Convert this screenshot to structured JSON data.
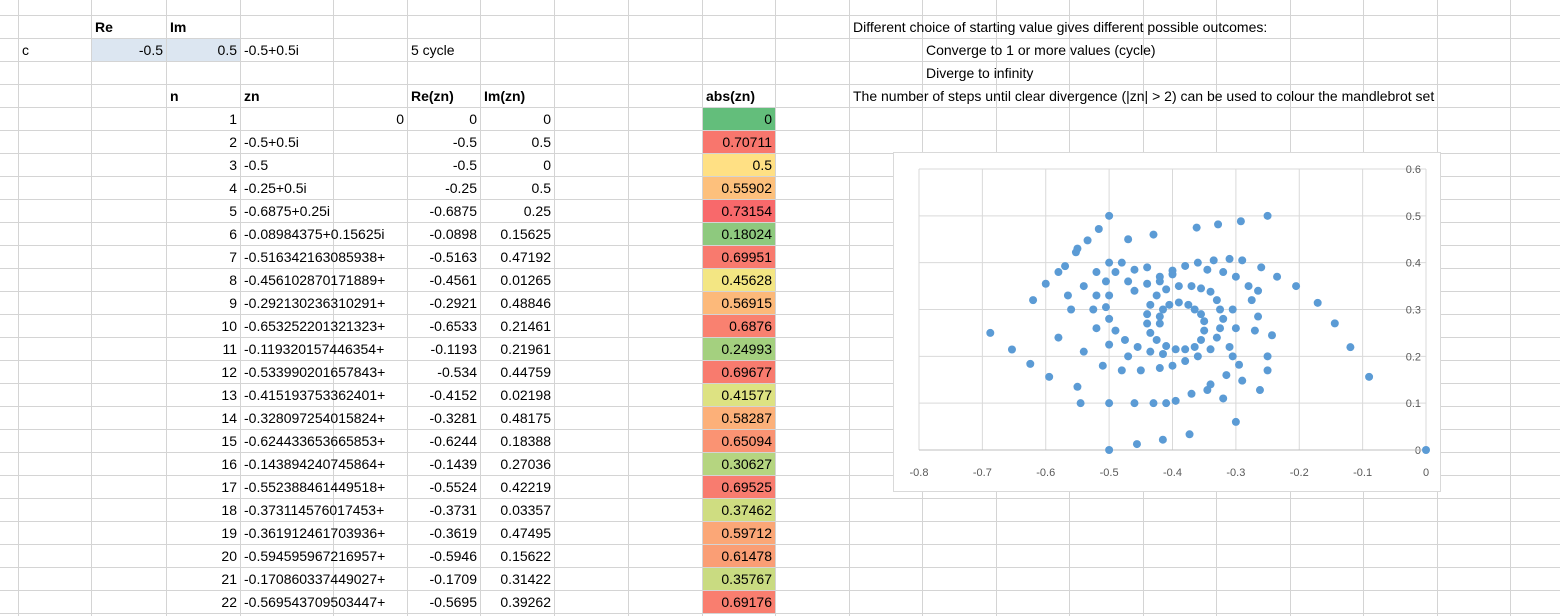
{
  "sheet": {
    "cells": {
      "B1": "Re",
      "C1": "Im",
      "A2": "c",
      "B2": "-0.5",
      "C2": "0.5",
      "D2": "-0.5+0.5i",
      "F2": "5 cycle",
      "C4": "n",
      "D4": "zn",
      "F4": "Re(zn)",
      "G4": "Im(zn)",
      "J4": "abs(zn)",
      "L1": "Different choice of starting value gives different possible outcomes:",
      "M2": "Converge to 1 or more values (cycle)",
      "M3": "Diverge to infinity",
      "L4": "The number of steps until clear divergence (|zn| > 2) can be used to colour the mandlebrot set"
    },
    "rows": [
      {
        "n": "1",
        "zn": "0",
        "re": "0",
        "im": "0",
        "abs": "0",
        "color": "#63be7b"
      },
      {
        "n": "2",
        "zn": "-0.5+0.5i",
        "re": "-0.5",
        "im": "0.5",
        "abs": "0.70711",
        "color": "#f8766d"
      },
      {
        "n": "3",
        "zn": "-0.5",
        "re": "-0.5",
        "im": "0",
        "abs": "0.5",
        "color": "#ffe084"
      },
      {
        "n": "4",
        "zn": "-0.25+0.5i",
        "re": "-0.25",
        "im": "0.5",
        "abs": "0.55902",
        "color": "#fdc07c"
      },
      {
        "n": "5",
        "zn": "-0.6875+0.25i",
        "re": "-0.6875",
        "im": "0.25",
        "abs": "0.73154",
        "color": "#f8696b"
      },
      {
        "n": "6",
        "zn": "-0.08984375+0.15625i",
        "re": "-0.0898",
        "im": "0.15625",
        "abs": "0.18024",
        "color": "#8ec97e"
      },
      {
        "n": "7",
        "zn": "-0.516342163085938+",
        "re": "-0.5163",
        "im": "0.47192",
        "abs": "0.69951",
        "color": "#f87a6e"
      },
      {
        "n": "8",
        "zn": "-0.456102870171889+",
        "re": "-0.4561",
        "im": "0.01265",
        "abs": "0.45628",
        "color": "#f3e683"
      },
      {
        "n": "9",
        "zn": "-0.292130236310291+",
        "re": "-0.2921",
        "im": "0.48846",
        "abs": "0.56915",
        "color": "#fcb97a"
      },
      {
        "n": "10",
        "zn": "-0.653252201321323+",
        "re": "-0.6533",
        "im": "0.21461",
        "abs": "0.6876",
        "color": "#f98170"
      },
      {
        "n": "11",
        "zn": "-0.119320157446354+",
        "re": "-0.1193",
        "im": "0.21961",
        "abs": "0.24993",
        "color": "#a4d07f"
      },
      {
        "n": "12",
        "zn": "-0.533990201657843+",
        "re": "-0.534",
        "im": "0.44759",
        "abs": "0.69677",
        "color": "#f87b6e"
      },
      {
        "n": "13",
        "zn": "-0.415193753362401+",
        "re": "-0.4152",
        "im": "0.02198",
        "abs": "0.41577",
        "color": "#dde282"
      },
      {
        "n": "14",
        "zn": "-0.328097254015824+",
        "re": "-0.3281",
        "im": "0.48175",
        "abs": "0.58287",
        "color": "#fcb079"
      },
      {
        "n": "15",
        "zn": "-0.624433653665853+",
        "re": "-0.6244",
        "im": "0.18388",
        "abs": "0.65094",
        "color": "#fa9373"
      },
      {
        "n": "16",
        "zn": "-0.143894240745864+",
        "re": "-0.1439",
        "im": "0.27036",
        "abs": "0.30627",
        "color": "#b5d580"
      },
      {
        "n": "17",
        "zn": "-0.552388461449518+",
        "re": "-0.5524",
        "im": "0.42219",
        "abs": "0.69525",
        "color": "#f87c6f"
      },
      {
        "n": "18",
        "zn": "-0.373114576017453+",
        "re": "-0.3731",
        "im": "0.03357",
        "abs": "0.37462",
        "color": "#cfdd81"
      },
      {
        "n": "19",
        "zn": "-0.361912461703936+",
        "re": "-0.3619",
        "im": "0.47495",
        "abs": "0.59712",
        "color": "#fba777"
      },
      {
        "n": "20",
        "zn": "-0.594595967216957+",
        "re": "-0.5946",
        "im": "0.15622",
        "abs": "0.61478",
        "color": "#fa9e75"
      },
      {
        "n": "21",
        "zn": "-0.170860337449027+",
        "re": "-0.1709",
        "im": "0.31422",
        "abs": "0.35767",
        "color": "#c9db81"
      },
      {
        "n": "22",
        "zn": "-0.569543709503447+",
        "re": "-0.5695",
        "im": "0.39262",
        "abs": "0.69176",
        "color": "#f97e6f"
      }
    ]
  },
  "colors": {
    "input_fill": "#dce6f1",
    "gridline": "#d4d4d4",
    "chart_marker": "#5b9bd5",
    "axis_text": "#595959"
  },
  "chart_data": {
    "type": "scatter",
    "title": "",
    "xlabel": "",
    "ylabel": "",
    "xlim": [
      -0.8,
      0
    ],
    "ylim": [
      0,
      0.6
    ],
    "x_ticks": [
      "-0.8",
      "-0.7",
      "-0.6",
      "-0.5",
      "-0.4",
      "-0.3",
      "-0.2",
      "-0.1",
      "0"
    ],
    "y_ticks": [
      "0",
      "0.1",
      "0.2",
      "0.3",
      "0.4",
      "0.5",
      "0.6"
    ],
    "grid": true,
    "legend": "none",
    "series": [
      {
        "points": [
          [
            0,
            0
          ],
          [
            -0.5,
            0.5
          ],
          [
            -0.5,
            0
          ],
          [
            -0.25,
            0.5
          ],
          [
            -0.6875,
            0.25
          ],
          [
            -0.0898,
            0.15625
          ],
          [
            -0.5163,
            0.47192
          ],
          [
            -0.4561,
            0.01265
          ],
          [
            -0.2921,
            0.48846
          ],
          [
            -0.6533,
            0.21461
          ],
          [
            -0.1193,
            0.21961
          ],
          [
            -0.534,
            0.44759
          ],
          [
            -0.4152,
            0.02198
          ],
          [
            -0.3281,
            0.48175
          ],
          [
            -0.6244,
            0.18388
          ],
          [
            -0.1439,
            0.27036
          ],
          [
            -0.5524,
            0.42219
          ],
          [
            -0.3731,
            0.03357
          ],
          [
            -0.3619,
            0.47495
          ],
          [
            -0.5946,
            0.15622
          ],
          [
            -0.1709,
            0.31422
          ],
          [
            -0.5695,
            0.39262
          ],
          [
            -0.5,
            0.1
          ],
          [
            -0.55,
            0.135
          ],
          [
            -0.46,
            0.1
          ],
          [
            -0.43,
            0.1
          ],
          [
            -0.395,
            0.105
          ],
          [
            -0.37,
            0.12
          ],
          [
            -0.34,
            0.14
          ],
          [
            -0.315,
            0.16
          ],
          [
            -0.295,
            0.182
          ],
          [
            -0.262,
            0.128
          ],
          [
            -0.25,
            0.17
          ],
          [
            -0.25,
            0.2
          ],
          [
            -0.243,
            0.245
          ],
          [
            -0.265,
            0.285
          ],
          [
            -0.265,
            0.34
          ],
          [
            -0.205,
            0.35
          ],
          [
            -0.235,
            0.37
          ],
          [
            -0.26,
            0.39
          ],
          [
            -0.29,
            0.405
          ],
          [
            -0.31,
            0.408
          ],
          [
            -0.335,
            0.405
          ],
          [
            -0.36,
            0.4
          ],
          [
            -0.38,
            0.393
          ],
          [
            -0.4,
            0.383
          ],
          [
            -0.42,
            0.37
          ],
          [
            -0.44,
            0.355
          ],
          [
            -0.46,
            0.34
          ],
          [
            -0.48,
            0.4
          ],
          [
            -0.5,
            0.4
          ],
          [
            -0.52,
            0.38
          ],
          [
            -0.54,
            0.35
          ],
          [
            -0.56,
            0.3
          ],
          [
            -0.58,
            0.24
          ],
          [
            -0.565,
            0.33
          ],
          [
            -0.54,
            0.21
          ],
          [
            -0.51,
            0.18
          ],
          [
            -0.48,
            0.17
          ],
          [
            -0.45,
            0.17
          ],
          [
            -0.42,
            0.175
          ],
          [
            -0.4,
            0.18
          ],
          [
            -0.38,
            0.19
          ],
          [
            -0.36,
            0.2
          ],
          [
            -0.34,
            0.215
          ],
          [
            -0.33,
            0.24
          ],
          [
            -0.325,
            0.26
          ],
          [
            -0.32,
            0.28
          ],
          [
            -0.325,
            0.3
          ],
          [
            -0.33,
            0.32
          ],
          [
            -0.34,
            0.338
          ],
          [
            -0.355,
            0.345
          ],
          [
            -0.37,
            0.35
          ],
          [
            -0.39,
            0.35
          ],
          [
            -0.41,
            0.343
          ],
          [
            -0.425,
            0.33
          ],
          [
            -0.435,
            0.31
          ],
          [
            -0.44,
            0.29
          ],
          [
            -0.44,
            0.27
          ],
          [
            -0.435,
            0.25
          ],
          [
            -0.425,
            0.235
          ],
          [
            -0.41,
            0.222
          ],
          [
            -0.395,
            0.215
          ],
          [
            -0.38,
            0.215
          ],
          [
            -0.365,
            0.22
          ],
          [
            -0.355,
            0.235
          ],
          [
            -0.35,
            0.255
          ],
          [
            -0.35,
            0.275
          ],
          [
            -0.355,
            0.29
          ],
          [
            -0.365,
            0.3
          ],
          [
            -0.375,
            0.31
          ],
          [
            -0.39,
            0.315
          ],
          [
            -0.405,
            0.31
          ],
          [
            -0.415,
            0.3
          ],
          [
            -0.42,
            0.285
          ],
          [
            -0.42,
            0.27
          ],
          [
            -0.47,
            0.2
          ],
          [
            -0.5,
            0.225
          ],
          [
            -0.52,
            0.26
          ],
          [
            -0.525,
            0.3
          ],
          [
            -0.52,
            0.33
          ],
          [
            -0.505,
            0.36
          ],
          [
            -0.49,
            0.38
          ],
          [
            -0.46,
            0.385
          ],
          [
            -0.44,
            0.39
          ],
          [
            -0.3,
            0.06
          ],
          [
            -0.32,
            0.11
          ],
          [
            -0.345,
            0.128
          ],
          [
            -0.29,
            0.148
          ],
          [
            -0.27,
            0.255
          ],
          [
            -0.275,
            0.32
          ],
          [
            -0.28,
            0.35
          ],
          [
            -0.3,
            0.37
          ],
          [
            -0.32,
            0.38
          ],
          [
            -0.345,
            0.385
          ],
          [
            -0.4,
            0.375
          ],
          [
            -0.42,
            0.36
          ],
          [
            -0.47,
            0.36
          ],
          [
            -0.5,
            0.33
          ],
          [
            -0.505,
            0.305
          ],
          [
            -0.5,
            0.28
          ],
          [
            -0.49,
            0.255
          ],
          [
            -0.475,
            0.235
          ],
          [
            -0.455,
            0.22
          ],
          [
            -0.435,
            0.21
          ],
          [
            -0.415,
            0.205
          ],
          [
            -0.305,
            0.2
          ],
          [
            -0.31,
            0.22
          ],
          [
            -0.3,
            0.26
          ],
          [
            -0.305,
            0.3
          ],
          [
            -0.62,
            0.32
          ],
          [
            -0.6,
            0.355
          ],
          [
            -0.58,
            0.38
          ],
          [
            -0.55,
            0.43
          ],
          [
            -0.47,
            0.45
          ],
          [
            -0.43,
            0.46
          ],
          [
            -0.41,
            0.1
          ],
          [
            -0.545,
            0.1
          ]
        ]
      }
    ]
  }
}
